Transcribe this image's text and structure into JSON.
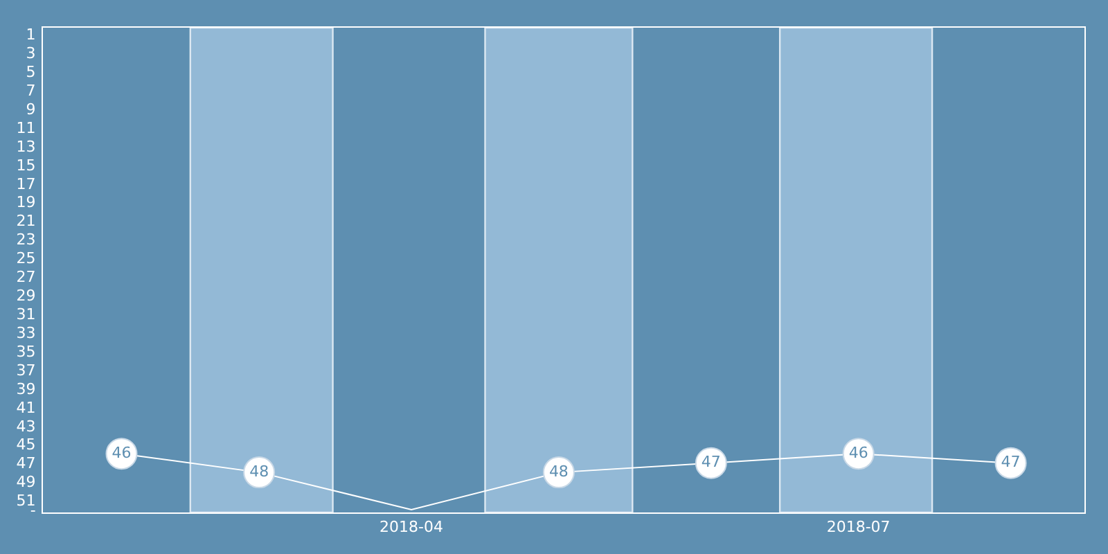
{
  "chart_data": {
    "type": "line",
    "x": [
      "2018-02",
      "2018-03",
      "2018-04",
      "2018-05",
      "2018-06",
      "2018-07",
      "2018-08"
    ],
    "series": [
      {
        "color": "#ffffff",
        "values": [
          46,
          48,
          52,
          48,
          47,
          46,
          47
        ],
        "value_labels": [
          "46",
          "48",
          null,
          "48",
          "47",
          "46",
          "47"
        ]
      }
    ],
    "xlim": [
      "2018-01-16",
      "2018-08-16"
    ],
    "xticks": [
      "2018-04",
      "2018-07"
    ],
    "ylim": [
      52.3,
      0.3
    ],
    "yticks": [
      1,
      3,
      5,
      7,
      9,
      11,
      13,
      15,
      17,
      19,
      21,
      23,
      25,
      27,
      29,
      31,
      33,
      35,
      37,
      39,
      41,
      43,
      45,
      47,
      49,
      51,
      {
        "value": 52,
        "label": "-"
      }
    ],
    "bands": [
      {
        "axis": "x",
        "from": "2018-02-15",
        "to": "2018-03-16",
        "color": "#93b9d6"
      },
      {
        "axis": "x",
        "from": "2018-04-16",
        "to": "2018-05-16",
        "color": "#93b9d6"
      },
      {
        "axis": "x",
        "from": "2018-06-15",
        "to": "2018-07-16",
        "color": "#93b9d6"
      }
    ],
    "grid": false,
    "legend": false,
    "marker": "circle",
    "line_style": "solid"
  }
}
